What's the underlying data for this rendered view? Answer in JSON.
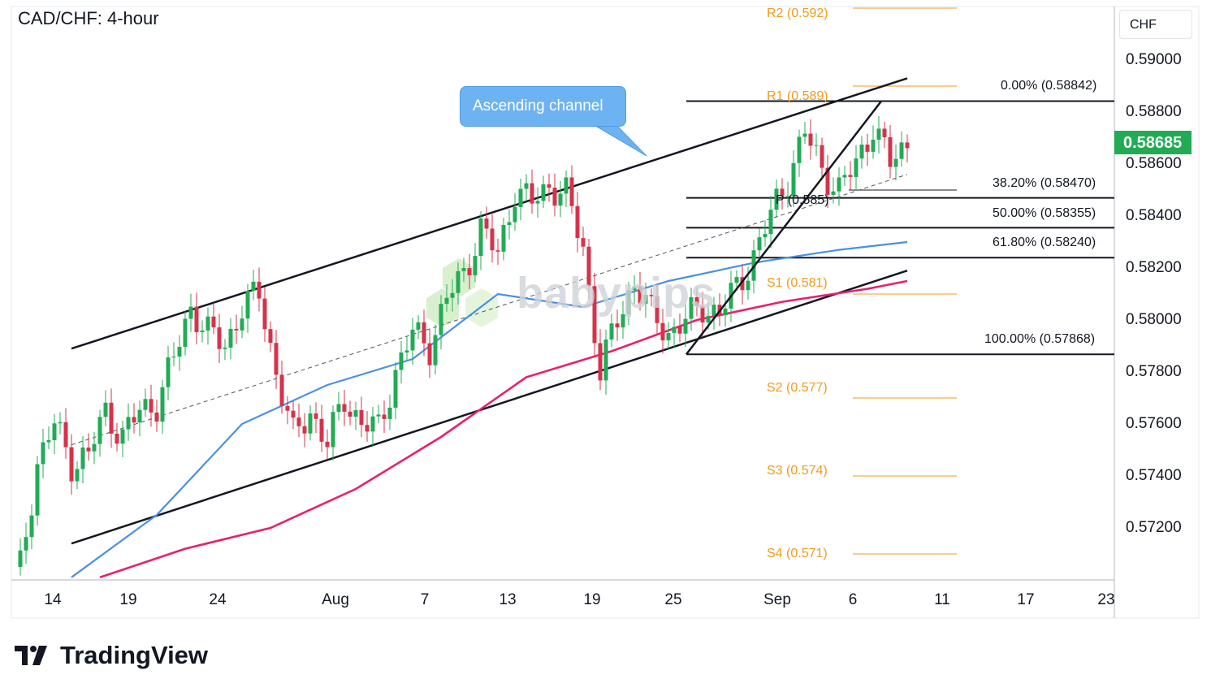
{
  "header": {
    "title": "CAD/CHF: 4-hour",
    "currency": "CHF"
  },
  "price_axis": {
    "ticks": [
      "0.59000",
      "0.58800",
      "0.58600",
      "0.58400",
      "0.58200",
      "0.58000",
      "0.57800",
      "0.57600",
      "0.57400",
      "0.57200"
    ],
    "current": "0.58685",
    "current_color": "#22ab55"
  },
  "time_axis": {
    "ticks": [
      "14",
      "19",
      "24",
      "Aug",
      "7",
      "13",
      "19",
      "25",
      "Sep",
      "6",
      "11",
      "17",
      "23"
    ]
  },
  "pivots": [
    {
      "label": "R2 (0.592)"
    },
    {
      "label": "R1 (0.589)"
    },
    {
      "label": "P (0.585)"
    },
    {
      "label": "S1 (0.581)"
    },
    {
      "label": "S2 (0.577)"
    },
    {
      "label": "S3 (0.574)"
    },
    {
      "label": "S4 (0.571)"
    }
  ],
  "fib_levels": [
    {
      "label": "0.00% (0.58842)"
    },
    {
      "label": "38.20% (0.58470)"
    },
    {
      "label": "50.00% (0.58355)"
    },
    {
      "label": "61.80% (0.58240)"
    },
    {
      "label": "100.00% (0.57868)"
    }
  ],
  "annotation": {
    "callout": "Ascending channel"
  },
  "watermark": "babypips",
  "branding": {
    "logo_text": "TradingView"
  },
  "colors": {
    "ma_fast": "#4a90e2",
    "ma_slow": "#e8206f",
    "pivot": "#f29a1d",
    "up": "#22ab55",
    "down": "#d6334a"
  },
  "chart_data": {
    "type": "candlestick",
    "title": "CAD/CHF: 4-hour",
    "ylabel": "CHF",
    "ylim": [
      0.5701,
      0.592
    ],
    "x_ticks": [
      "14",
      "19",
      "24",
      "Aug",
      "7",
      "13",
      "19",
      "25",
      "Sep",
      "6",
      "11",
      "17",
      "23"
    ],
    "current_price": 0.58685,
    "close_path": [
      [
        1,
        0.5705
      ],
      [
        4,
        0.5745
      ],
      [
        7,
        0.576
      ],
      [
        10,
        0.5745
      ],
      [
        13,
        0.5748
      ],
      [
        16,
        0.5765
      ],
      [
        19,
        0.5755
      ],
      [
        22,
        0.5765
      ],
      [
        25,
        0.5768
      ],
      [
        28,
        0.5785
      ],
      [
        31,
        0.5805
      ],
      [
        34,
        0.5795
      ],
      [
        37,
        0.579
      ],
      [
        40,
        0.5805
      ],
      [
        43,
        0.581
      ],
      [
        46,
        0.578
      ],
      [
        49,
        0.5755
      ],
      [
        52,
        0.5765
      ],
      [
        55,
        0.5752
      ],
      [
        58,
        0.577
      ],
      [
        61,
        0.576
      ],
      [
        64,
        0.5758
      ],
      [
        67,
        0.578
      ],
      [
        70,
        0.5795
      ],
      [
        73,
        0.579
      ],
      [
        76,
        0.5808
      ],
      [
        79,
        0.5818
      ],
      [
        82,
        0.5835
      ],
      [
        85,
        0.5825
      ],
      [
        88,
        0.585
      ],
      [
        91,
        0.5845
      ],
      [
        94,
        0.5852
      ],
      [
        97,
        0.5848
      ],
      [
        100,
        0.5828
      ],
      [
        103,
        0.578
      ],
      [
        106,
        0.58
      ],
      [
        109,
        0.5815
      ],
      [
        112,
        0.5802
      ],
      [
        115,
        0.5795
      ],
      [
        118,
        0.58
      ],
      [
        121,
        0.5805
      ],
      [
        124,
        0.5803
      ],
      [
        127,
        0.5812
      ],
      [
        130,
        0.5825
      ],
      [
        133,
        0.584
      ],
      [
        136,
        0.5855
      ],
      [
        139,
        0.5872
      ],
      [
        142,
        0.5858
      ],
      [
        145,
        0.585
      ],
      [
        148,
        0.586
      ],
      [
        151,
        0.5875
      ],
      [
        154,
        0.586
      ],
      [
        157,
        0.58685
      ]
    ],
    "ma_fast": [
      [
        10,
        0.5701
      ],
      [
        25,
        0.5725
      ],
      [
        40,
        0.576
      ],
      [
        55,
        0.5775
      ],
      [
        70,
        0.5785
      ],
      [
        85,
        0.581
      ],
      [
        100,
        0.5805
      ],
      [
        115,
        0.5815
      ],
      [
        130,
        0.5822
      ],
      [
        145,
        0.5827
      ],
      [
        157,
        0.583
      ]
    ],
    "ma_slow": [
      [
        15,
        0.5701
      ],
      [
        30,
        0.5712
      ],
      [
        45,
        0.572
      ],
      [
        60,
        0.5735
      ],
      [
        75,
        0.5755
      ],
      [
        90,
        0.5778
      ],
      [
        105,
        0.5788
      ],
      [
        120,
        0.58
      ],
      [
        135,
        0.5807
      ],
      [
        150,
        0.5812
      ],
      [
        157,
        0.5815
      ]
    ],
    "channel_upper": [
      [
        10,
        0.5789
      ],
      [
        157,
        0.5893
      ]
    ],
    "channel_lower": [
      [
        10,
        0.5714
      ],
      [
        157,
        0.5819
      ]
    ],
    "channel_mid": [
      [
        10,
        0.5752
      ],
      [
        157,
        0.5856
      ]
    ],
    "fib_levels": [
      {
        "ratio": 0.0,
        "value": 0.58842
      },
      {
        "ratio": 0.382,
        "value": 0.5847
      },
      {
        "ratio": 0.5,
        "value": 0.58355
      },
      {
        "ratio": 0.618,
        "value": 0.5824
      },
      {
        "ratio": 1.0,
        "value": 0.57868
      }
    ],
    "pivots": {
      "R2": 0.592,
      "R1": 0.589,
      "P": 0.585,
      "S1": 0.581,
      "S2": 0.577,
      "S3": 0.574,
      "S4": 0.571
    },
    "annotation": "Ascending channel"
  }
}
